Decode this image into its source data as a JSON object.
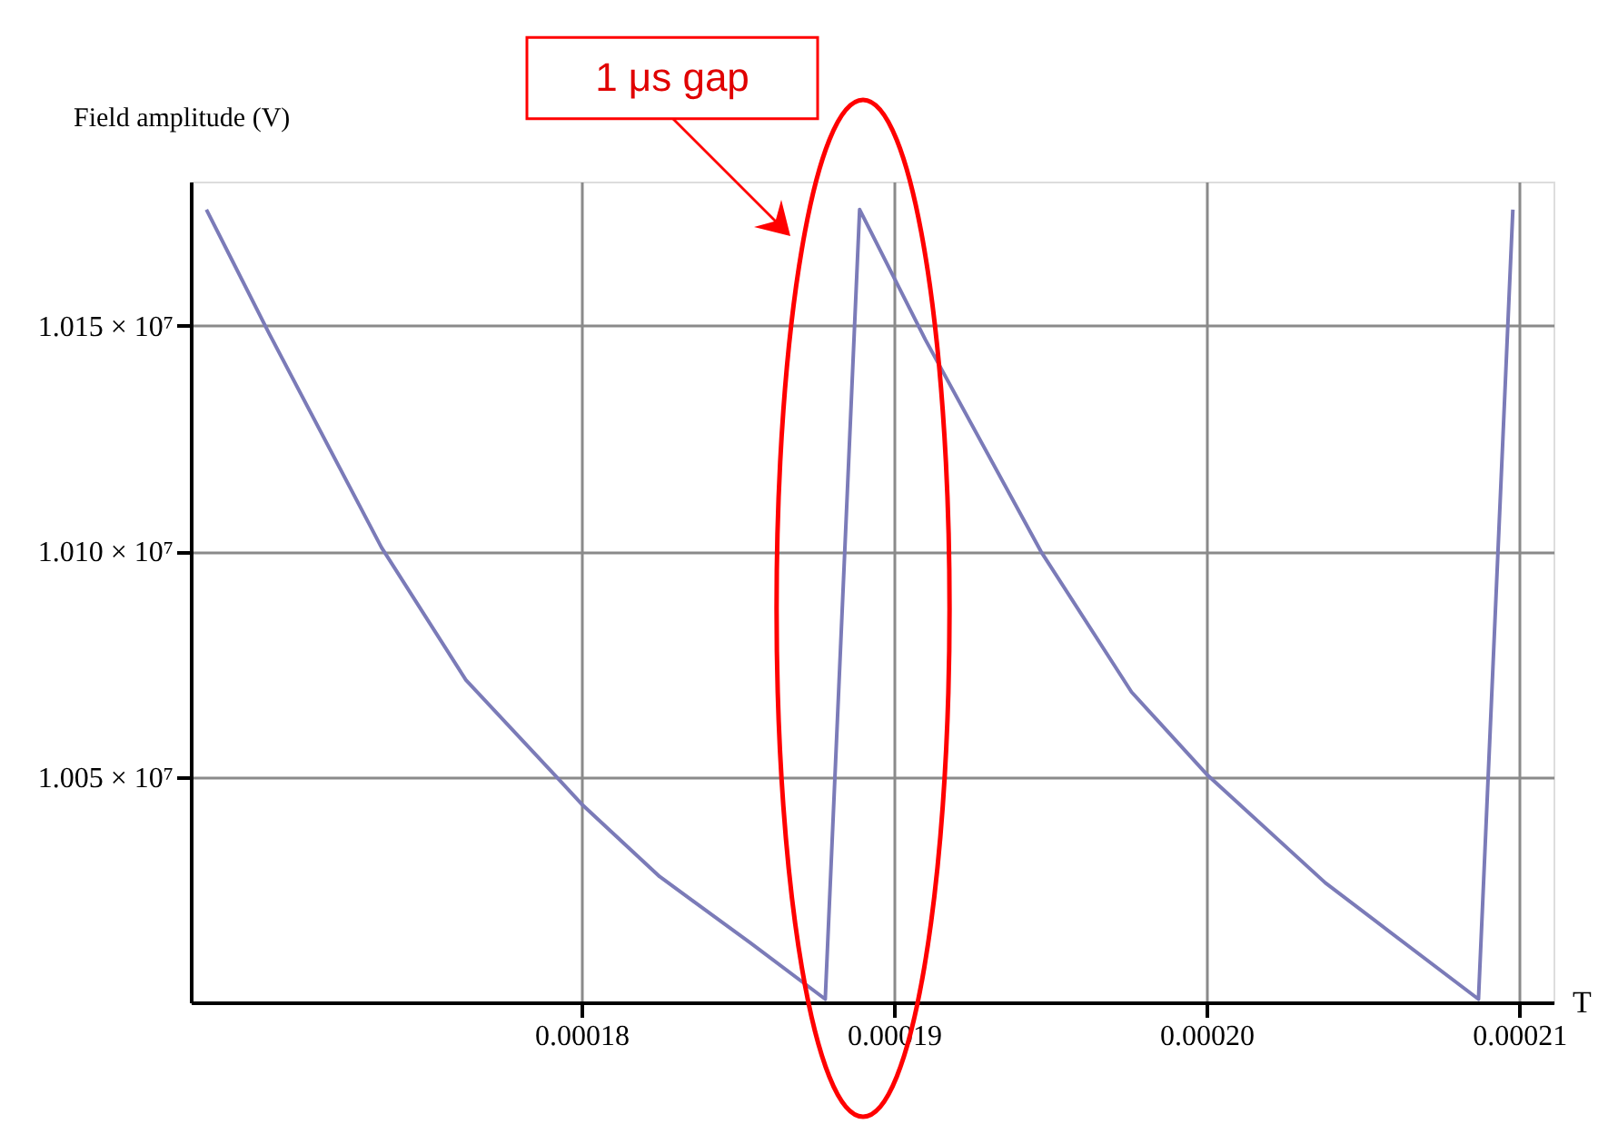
{
  "chart_data": {
    "type": "line",
    "xlabel": "T",
    "ylabel": "Field amplitude (V)",
    "series": [
      {
        "color": "#7b7bb8",
        "x": [
          0.000168,
          0.00017,
          0.0001736,
          0.0001763,
          0.0001792,
          0.00018,
          0.0001825,
          0.0001854,
          0.0001878,
          0.0001889,
          0.000191,
          0.0001947,
          0.0001976,
          0.0002,
          0.0002038,
          0.0002087,
          0.0002098
        ],
        "values": [
          10175800,
          10148400,
          10100900,
          10071500,
          10050000,
          10044000,
          10027900,
          10013200,
          10000700,
          10175800,
          10147000,
          10100000,
          10068800,
          10050600,
          10026500,
          10000700,
          10175800
        ]
      }
    ],
    "xlim": [
      0.0001675,
      0.0002111
    ],
    "ylim": [
      10000000,
      10182000
    ],
    "xticks": [
      0.00018,
      0.00019,
      {
        "value": 0.0002,
        "label": "0.00020"
      },
      0.00021
    ],
    "yticks": [
      {
        "value": 10050000,
        "label": "1.005 × 10⁷"
      },
      {
        "value": 10100000,
        "label": "1.010 × 10⁷"
      },
      {
        "value": 10150000,
        "label": "1.015 × 10⁷"
      }
    ],
    "grid": true,
    "marker": "none",
    "line_style": "solid",
    "annotations": [
      "1 μs gap"
    ]
  }
}
